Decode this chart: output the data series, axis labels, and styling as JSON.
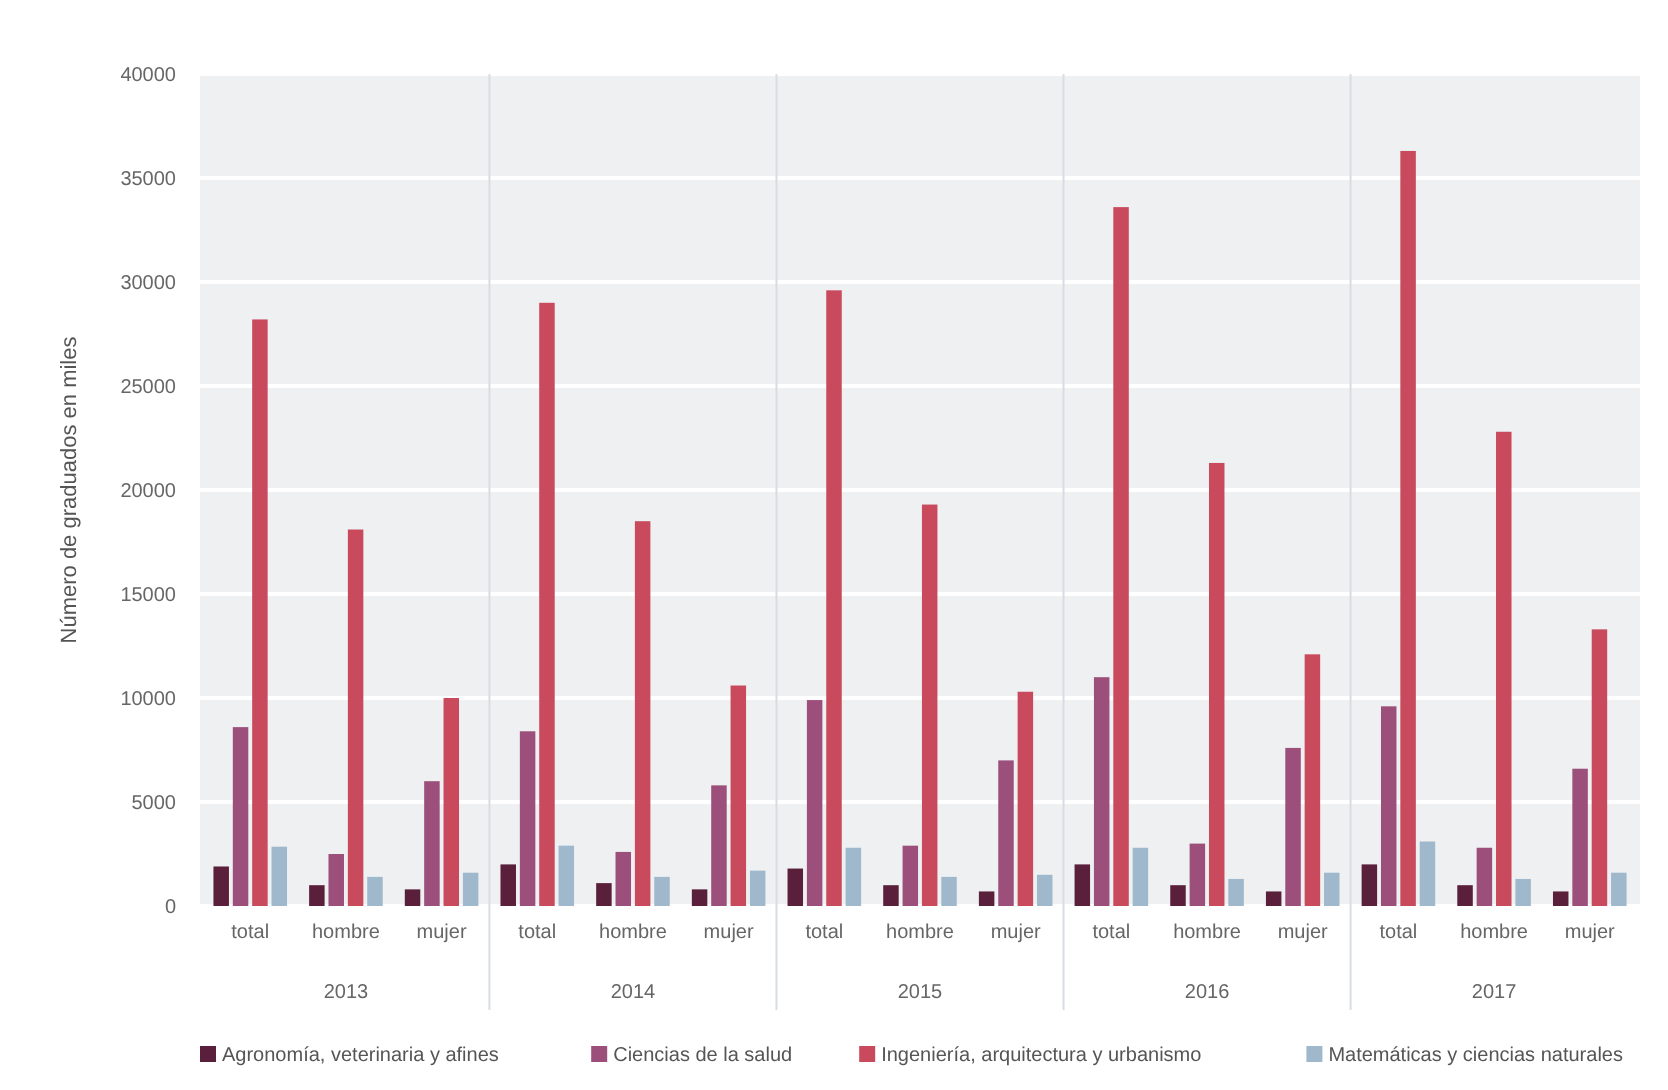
{
  "chart_data": {
    "type": "bar",
    "ylabel": "Número de graduados en miles",
    "categories": [
      "total",
      "hombre",
      "mujer",
      "total",
      "hombre",
      "mujer",
      "total",
      "hombre",
      "mujer",
      "total",
      "hombre",
      "mujer",
      "total",
      "hombre",
      "mujer"
    ],
    "annotations": [
      "2013",
      "2014",
      "2015",
      "2016",
      "2017"
    ],
    "series": [
      {
        "name": "Agronomía, veterinaria y afines",
        "color": "#5a1f3a",
        "values": [
          1900,
          1000,
          800,
          2000,
          1100,
          800,
          1800,
          1000,
          700,
          2000,
          1000,
          700,
          2000,
          1000,
          700
        ]
      },
      {
        "name": "Ciencias de la salud",
        "color": "#9b4f7a",
        "values": [
          8600,
          2500,
          6000,
          8400,
          2600,
          5800,
          9900,
          2900,
          7000,
          11000,
          3000,
          7600,
          9600,
          2800,
          6600
        ]
      },
      {
        "name": "Ingeniería, arquitectura y urbanismo",
        "color": "#c84a5c",
        "values": [
          28200,
          18100,
          10000,
          29000,
          18500,
          10600,
          29600,
          19300,
          10300,
          33600,
          21300,
          12100,
          36300,
          22800,
          13300
        ]
      },
      {
        "name": "Matemáticas y ciencias naturales",
        "color": "#9fb8cc",
        "values": [
          2850,
          1400,
          1600,
          2900,
          1400,
          1700,
          2800,
          1400,
          1500,
          2800,
          1300,
          1600,
          3100,
          1300,
          1600
        ]
      }
    ],
    "ylim": [
      0,
      40000
    ],
    "yticks": [
      0,
      5000,
      10000,
      15000,
      20000,
      25000,
      30000,
      35000,
      40000
    ],
    "grid": "y",
    "legend": "bottom"
  }
}
